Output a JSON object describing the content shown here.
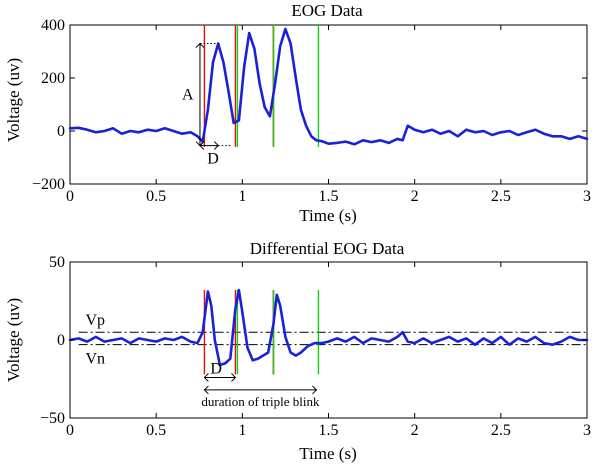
{
  "chart_data": [
    {
      "type": "line",
      "title": "EOG Data",
      "xlabel": "Time (s)",
      "ylabel": "Voltage (uv)",
      "xlim": [
        0,
        3
      ],
      "ylim": [
        -200,
        400
      ],
      "xticks": [
        0,
        0.5,
        1,
        1.5,
        2,
        2.5,
        3
      ],
      "xtick_labels": [
        "0",
        "0.5",
        "1",
        "1.5",
        "2",
        "2.5",
        "3"
      ],
      "yticks": [
        -200,
        0,
        200,
        400
      ],
      "ytick_labels": [
        "−200",
        "0",
        "200",
        "400"
      ],
      "series_color": "#1a22d8",
      "x": [
        0,
        0.05,
        0.1,
        0.15,
        0.2,
        0.25,
        0.3,
        0.35,
        0.4,
        0.45,
        0.5,
        0.55,
        0.6,
        0.65,
        0.7,
        0.74,
        0.77,
        0.8,
        0.83,
        0.86,
        0.89,
        0.92,
        0.95,
        0.98,
        1.01,
        1.04,
        1.07,
        1.1,
        1.13,
        1.16,
        1.19,
        1.22,
        1.25,
        1.28,
        1.31,
        1.34,
        1.37,
        1.4,
        1.43,
        1.46,
        1.5,
        1.55,
        1.6,
        1.65,
        1.7,
        1.75,
        1.8,
        1.85,
        1.9,
        1.93,
        1.96,
        2.0,
        2.05,
        2.1,
        2.15,
        2.2,
        2.25,
        2.3,
        2.35,
        2.4,
        2.45,
        2.5,
        2.55,
        2.6,
        2.65,
        2.7,
        2.75,
        2.8,
        2.85,
        2.9,
        2.95,
        3.0
      ],
      "values": [
        10,
        12,
        5,
        -5,
        0,
        10,
        -10,
        0,
        -5,
        5,
        0,
        10,
        0,
        -10,
        -5,
        -20,
        -40,
        80,
        260,
        330,
        260,
        150,
        30,
        40,
        240,
        370,
        310,
        180,
        90,
        55,
        180,
        320,
        385,
        330,
        200,
        80,
        20,
        -20,
        -35,
        -38,
        -48,
        -45,
        -40,
        -50,
        -35,
        -42,
        -35,
        -45,
        -30,
        -35,
        20,
        5,
        -5,
        5,
        -10,
        0,
        -20,
        5,
        -5,
        0,
        -15,
        -5,
        0,
        -15,
        -5,
        5,
        -10,
        -20,
        -20,
        -30,
        -20,
        -30
      ],
      "markers_red": [
        0.78,
        0.96,
        1.18
      ],
      "markers_green": [
        0.96,
        1.17,
        1.43
      ],
      "marker_span": [
        -60,
        400
      ],
      "annotation_A": {
        "label": "A",
        "x": 0.76,
        "y_from": -55,
        "y_to": 330
      },
      "annotation_D": {
        "label": "D",
        "x_from": 0.76,
        "x_to": 0.86,
        "y": -55
      }
    },
    {
      "type": "line",
      "title": "Differential EOG Data",
      "xlabel": "Time (s)",
      "ylabel": "Voltage (uv)",
      "xlim": [
        0,
        3
      ],
      "ylim": [
        -50,
        50
      ],
      "xticks": [
        0,
        0.5,
        1,
        1.5,
        2,
        2.5,
        3
      ],
      "xtick_labels": [
        "0",
        "0.5",
        "1",
        "1.5",
        "2",
        "2.5",
        "3"
      ],
      "yticks": [
        -50,
        0,
        50
      ],
      "ytick_labels": [
        "−50",
        "0",
        "50"
      ],
      "series_color": "#1a22d8",
      "x": [
        0,
        0.05,
        0.1,
        0.15,
        0.2,
        0.25,
        0.3,
        0.35,
        0.4,
        0.45,
        0.5,
        0.55,
        0.6,
        0.65,
        0.7,
        0.74,
        0.77,
        0.8,
        0.82,
        0.84,
        0.87,
        0.9,
        0.93,
        0.96,
        0.98,
        1.0,
        1.03,
        1.06,
        1.09,
        1.12,
        1.15,
        1.18,
        1.2,
        1.22,
        1.25,
        1.28,
        1.31,
        1.34,
        1.38,
        1.42,
        1.46,
        1.5,
        1.55,
        1.6,
        1.65,
        1.7,
        1.75,
        1.8,
        1.85,
        1.9,
        1.93,
        1.96,
        2.0,
        2.05,
        2.1,
        2.15,
        2.2,
        2.25,
        2.3,
        2.35,
        2.4,
        2.45,
        2.5,
        2.55,
        2.6,
        2.65,
        2.7,
        2.75,
        2.8,
        2.85,
        2.9,
        2.95,
        3.0
      ],
      "values": [
        0,
        1,
        -1,
        2,
        -1,
        0,
        1,
        -2,
        1,
        0,
        -1,
        1,
        0,
        2,
        -1,
        -2,
        5,
        31,
        22,
        0,
        -16,
        -15,
        -12,
        20,
        32,
        18,
        -5,
        -13,
        -12,
        -10,
        -8,
        10,
        29,
        22,
        2,
        -8,
        -10,
        -8,
        -4,
        -2,
        -2,
        -1,
        1,
        -1,
        2,
        -2,
        1,
        0,
        -1,
        2,
        5,
        -1,
        -2,
        1,
        -2,
        0,
        2,
        -1,
        1,
        -3,
        1,
        -2,
        2,
        -3,
        1,
        -1,
        2,
        -2,
        -3,
        -1,
        2,
        0,
        0
      ],
      "markers_red": [
        0.78,
        0.96,
        1.18
      ],
      "markers_green": [
        0.96,
        1.17,
        1.43
      ],
      "marker_span": [
        -22,
        32
      ],
      "vp_value": 5,
      "vn_value": -3,
      "vp_label": "Vp",
      "vn_label": "Vn",
      "annotation_D": {
        "label": "D",
        "x_from": 0.78,
        "x_to": 0.96,
        "y": -24
      },
      "annotation_duration": {
        "label": "duration of triple blink",
        "x_from": 0.78,
        "x_to": 1.43,
        "y": -32
      }
    }
  ]
}
